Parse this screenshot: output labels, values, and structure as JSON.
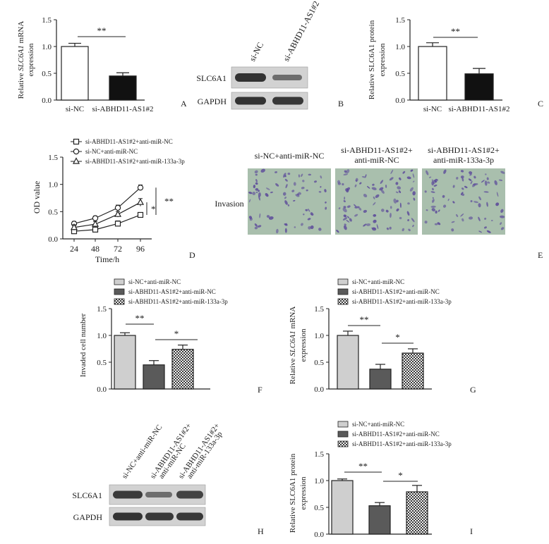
{
  "panel_letters": [
    "A",
    "B",
    "C",
    "D",
    "E",
    "F",
    "G",
    "H",
    "I"
  ],
  "colors": {
    "white_bar": "#ffffff",
    "black_bar": "#111111",
    "light_gray_bar": "#cfcfcf",
    "dark_gray_bar": "#5a5a5a",
    "checker_bar": "#7a7a7a",
    "blot_band": "#2a2a2a",
    "blot_bg": "#d2d2d2",
    "micro_bg": "#a9bfad",
    "micro_cell": "#5c4a9a"
  },
  "panel_A": {
    "ylabel_italic": "SLC6A1",
    "ylabel_rest": " mRNA",
    "ylabel_line2": "expression",
    "sig": "**"
  },
  "panel_B": {
    "lanes": [
      "si-NC",
      "si-ABHD11-AS1#2"
    ],
    "rows": [
      "SLC6A1",
      "GAPDH"
    ]
  },
  "panel_C": {
    "ylabel_line1": "Relative SLC6A1 protein",
    "ylabel_line2": "expression",
    "sig": "**"
  },
  "panel_D": {
    "legend": [
      "si-ABHD11-AS1#2+anti-miR-NC",
      "si-NC+anti-miR-NC",
      "si-ABHD11-AS1#2+anti-miR-133a-3p"
    ],
    "sig_inner": "*",
    "sig_outer": "**"
  },
  "panel_E": {
    "titles": [
      [
        "si-NC+anti-miR-NC"
      ],
      [
        "si-ABHD11-AS1#2+",
        "anti-miR-NC"
      ],
      [
        "si-ABHD11-AS1#2+",
        "anti-miR-133a-3p"
      ]
    ],
    "row_label": "Invasion"
  },
  "panel_F": {
    "legend": [
      "si-NC+anti-miR-NC",
      "si-ABHD11-AS1#2+anti-miR-NC",
      "si-ABHD11-AS1#2+anti-miR-133a-3p"
    ],
    "sig1": "**",
    "sig2": "*"
  },
  "panel_G": {
    "legend": [
      "si-NC+anti-miR-NC",
      "si-ABHD11-AS1#2+anti-miR-NC",
      "si-ABHD11-AS1#2+anti-miR-133a-3p"
    ],
    "ylabel_line1_pre": "Relative ",
    "ylabel_italic": "SLC6A1",
    "ylabel_rest": " mRNA",
    "ylabel_line2": "expression",
    "sig1": "**",
    "sig2": "*"
  },
  "panel_H": {
    "lanes": [
      [
        "si-NC+anti-miR-NC"
      ],
      [
        "si-ABHD11-AS1#2+",
        "anti-miR-NC"
      ],
      [
        "si-ABHD11-AS1#2+",
        "anti-miR-133a-3p"
      ]
    ],
    "rows": [
      "SLC6A1",
      "GAPDH"
    ]
  },
  "panel_I": {
    "legend": [
      "si-NC+anti-miR-NC",
      "si-ABHD11-AS1#2+anti-miR-NC",
      "si-ABHD11-AS1#2+anti-miR-133a-3p"
    ],
    "ylabel_line1": "Relative SLC6A1 protein",
    "ylabel_line2": "expression",
    "sig1": "**",
    "sig2": "*"
  },
  "chart_data": [
    {
      "panel": "A",
      "type": "bar",
      "categories": [
        "si-NC",
        "si-ABHD11-AS1#2"
      ],
      "values": [
        1.0,
        0.45
      ],
      "errors": [
        0.06,
        0.06
      ],
      "ylabel": "Relative SLC6A1 mRNA expression",
      "ylim": [
        0,
        1.5
      ],
      "yticks": [
        0.0,
        0.5,
        1.0,
        1.5
      ],
      "ytick_labels": [
        "0.0",
        "0.5",
        "1.0",
        "1.5"
      ]
    },
    {
      "panel": "C",
      "type": "bar",
      "categories": [
        "si-NC",
        "si-ABHD11-AS1#2"
      ],
      "values": [
        1.0,
        0.49
      ],
      "errors": [
        0.07,
        0.1
      ],
      "ylabel": "Relative SLC6A1 protein expression",
      "ylim": [
        0,
        1.5
      ],
      "yticks": [
        0.0,
        0.5,
        1.0,
        1.5
      ],
      "ytick_labels": [
        "0.0",
        "0.5",
        "1.0",
        "1.5"
      ]
    },
    {
      "panel": "D",
      "type": "line",
      "x": [
        24,
        48,
        72,
        96
      ],
      "x_tick_labels": [
        "24",
        "48",
        "72",
        "96"
      ],
      "series": [
        {
          "name": "si-ABHD11-AS1#2+anti-miR-NC",
          "marker": "square",
          "values": [
            0.14,
            0.17,
            0.28,
            0.44
          ],
          "errors": [
            0.04,
            0.04,
            0.05,
            0.04
          ]
        },
        {
          "name": "si-NC+anti-miR-NC",
          "marker": "circle",
          "values": [
            0.28,
            0.38,
            0.57,
            0.94
          ],
          "errors": [
            0.04,
            0.04,
            0.05,
            0.05
          ]
        },
        {
          "name": "si-ABHD11-AS1#2+anti-miR-133a-3p",
          "marker": "triangle",
          "values": [
            0.21,
            0.27,
            0.45,
            0.67
          ],
          "errors": [
            0.05,
            0.05,
            0.05,
            0.07
          ]
        }
      ],
      "xlabel": "Time/h",
      "ylabel": "OD value",
      "ylim": [
        0,
        1.5
      ],
      "yticks": [
        0.0,
        0.5,
        1.0,
        1.5
      ],
      "ytick_labels": [
        "0.0",
        "0.5",
        "1.0",
        "1.5"
      ]
    },
    {
      "panel": "F",
      "type": "bar",
      "categories": [
        "si-NC+anti-miR-NC",
        "si-ABHD11-AS1#2+anti-miR-NC",
        "si-ABHD11-AS1#2+anti-miR-133a-3p"
      ],
      "values": [
        1.0,
        0.45,
        0.74
      ],
      "errors": [
        0.05,
        0.08,
        0.08
      ],
      "ylabel": "Invaded cell number",
      "ylim": [
        0,
        1.5
      ],
      "yticks": [
        0.0,
        0.5,
        1.0,
        1.5
      ],
      "ytick_labels": [
        "0.0",
        "0.5",
        "1.0",
        "1.5"
      ]
    },
    {
      "panel": "G",
      "type": "bar",
      "categories": [
        "si-NC+anti-miR-NC",
        "si-ABHD11-AS1#2+anti-miR-NC",
        "si-ABHD11-AS1#2+anti-miR-133a-3p"
      ],
      "values": [
        1.0,
        0.37,
        0.67
      ],
      "errors": [
        0.08,
        0.09,
        0.08
      ],
      "ylabel": "Relative SLC6A1 mRNA expression",
      "ylim": [
        0,
        1.5
      ],
      "yticks": [
        0.0,
        0.5,
        1.0,
        1.5
      ],
      "ytick_labels": [
        "0.0",
        "0.5",
        "1.0",
        "1.5"
      ]
    },
    {
      "panel": "I",
      "type": "bar",
      "categories": [
        "si-NC+anti-miR-NC",
        "si-ABHD11-AS1#2+anti-miR-NC",
        "si-ABHD11-AS1#2+anti-miR-133a-3p"
      ],
      "values": [
        1.0,
        0.53,
        0.79
      ],
      "errors": [
        0.03,
        0.06,
        0.12
      ],
      "ylabel": "Relative SLC6A1 protein expression",
      "ylim": [
        0,
        1.5
      ],
      "yticks": [
        0.0,
        0.5,
        1.0,
        1.5
      ],
      "ytick_labels": [
        "0.0",
        "0.5",
        "1.0",
        "1.5"
      ]
    }
  ]
}
